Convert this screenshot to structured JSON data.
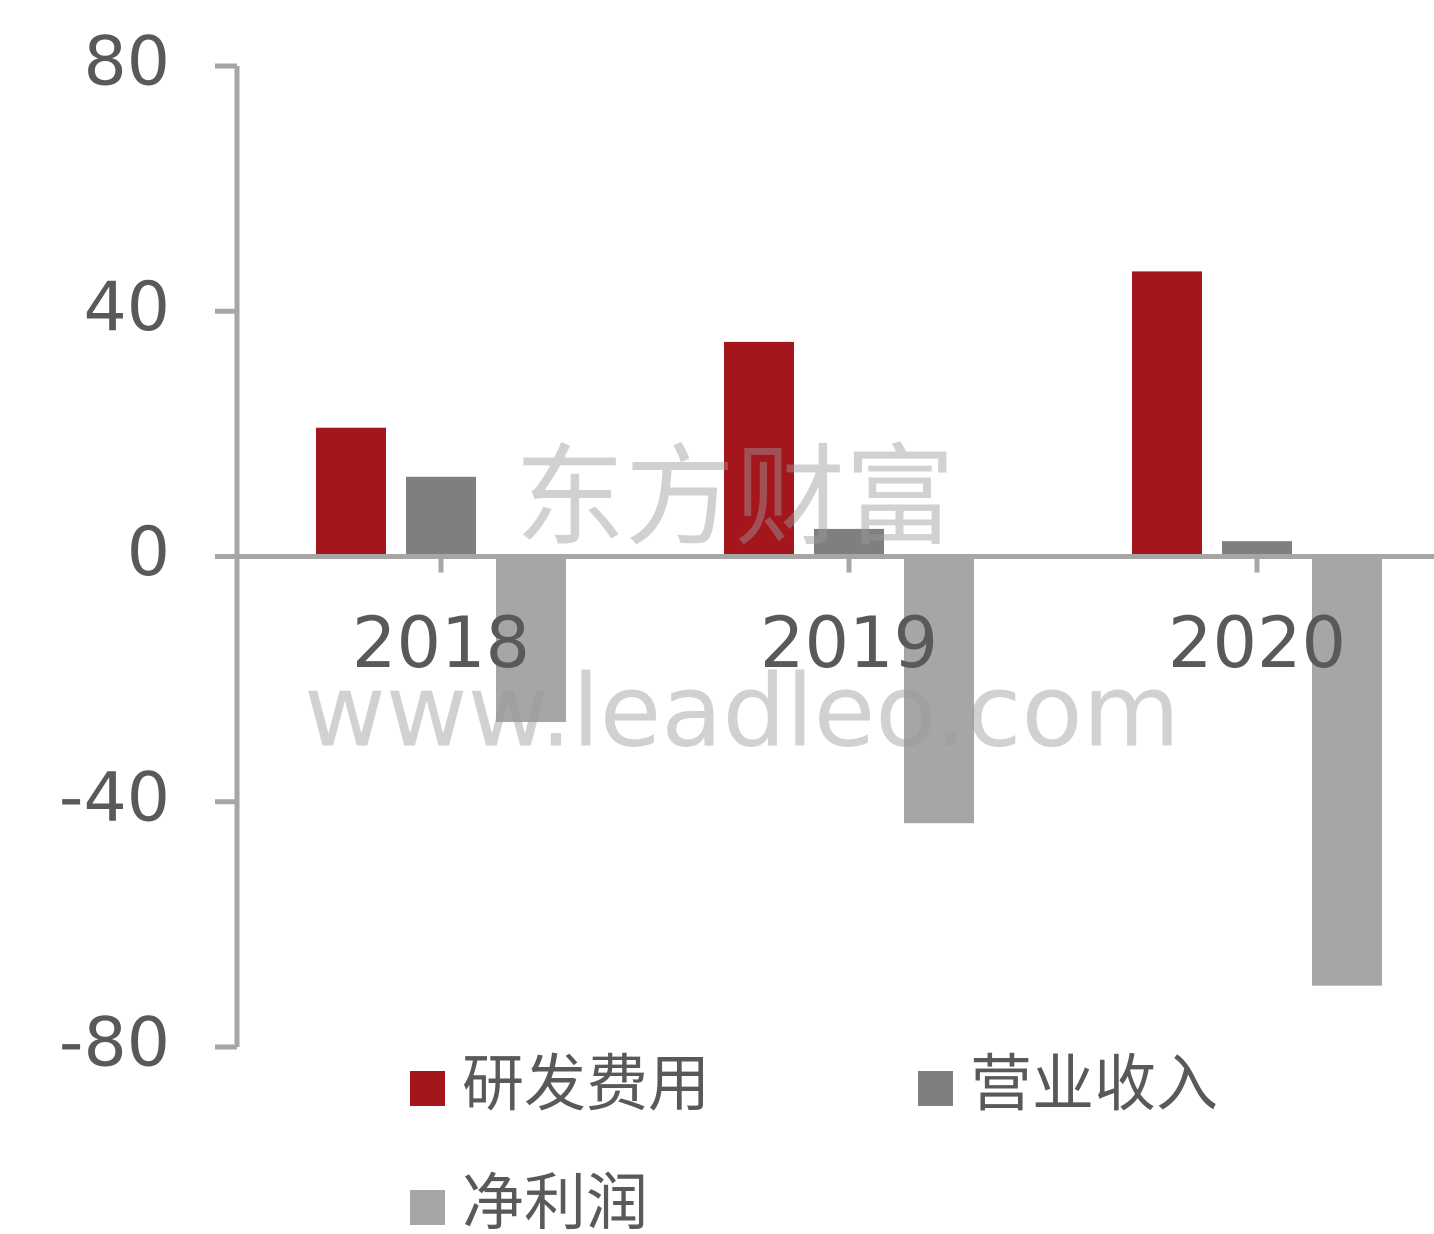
{
  "chart_data": {
    "type": "bar",
    "categories": [
      "2018",
      "2019",
      "2020"
    ],
    "series": [
      {
        "name": "研发费用",
        "color": "#a5151c",
        "values": [
          21,
          35,
          46.5
        ]
      },
      {
        "name": "营业收入",
        "color": "#7f7f7f",
        "values": [
          13,
          4.5,
          2.5
        ]
      },
      {
        "name": "净利润",
        "color": "#a6a6a6",
        "values": [
          -27,
          -43.5,
          -70
        ]
      }
    ],
    "ylim": [
      -80,
      80
    ],
    "yticks": [
      -80,
      -40,
      0,
      40,
      80
    ],
    "legend": "bottom",
    "annotations": [
      "东方财富",
      "www.leadleo.com"
    ]
  }
}
